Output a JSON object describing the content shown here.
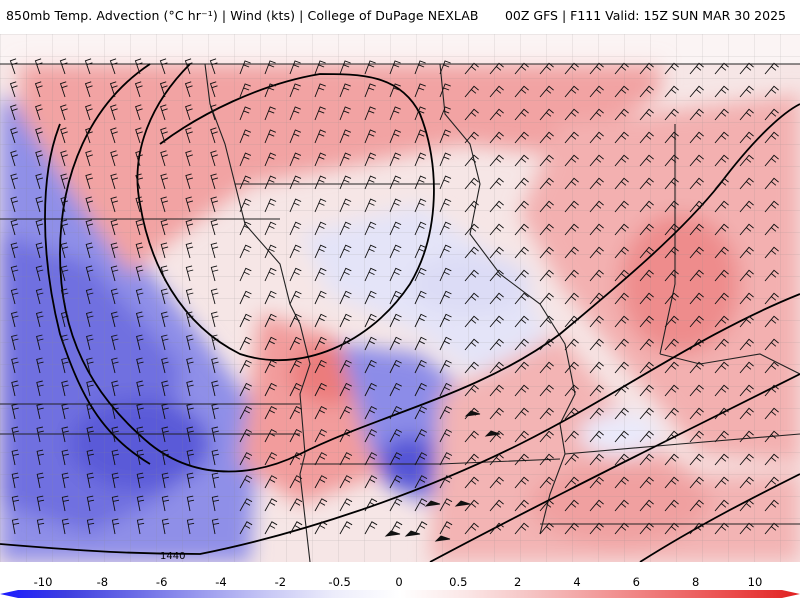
{
  "header": {
    "title_left": "850mb Temp. Advection (°C hr⁻¹) | Wind (kts) | College of DuPage NEXLAB",
    "title_right": "00Z GFS | F111 Valid: 15Z SUN MAR 30 2025"
  },
  "map": {
    "contour_label": "1440"
  },
  "colorbar": {
    "ticks": [
      "-10",
      "-8",
      "-6",
      "-4",
      "-2",
      "-0.5",
      "0",
      "0.5",
      "2",
      "4",
      "6",
      "8",
      "10"
    ],
    "colors": [
      "#1a1aff",
      "#3f3fe0",
      "#6a6ae6",
      "#9a9aee",
      "#c7c7f5",
      "#ececfb",
      "#ffffff",
      "#fbe6e6",
      "#f5c2c2",
      "#f29a9a",
      "#ee7272",
      "#ea4a4a",
      "#e02020"
    ]
  }
}
